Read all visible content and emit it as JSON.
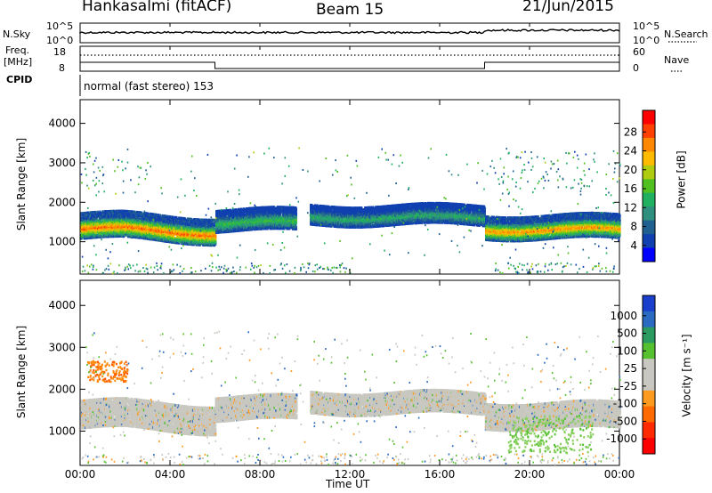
{
  "header": {
    "station": "Hankasalmi (fitACF)",
    "beam": "Beam 15",
    "date": "21/Jun/2015"
  },
  "strip": {
    "nsky_label": "N.Sky",
    "nsky_ticks": [
      "10^5",
      "10^0"
    ],
    "nsearch_label": "N.Search",
    "nsearch_ticks": [
      "10^5",
      "10^0"
    ],
    "freq_label_1": "Freq.",
    "freq_label_2": "[MHz]",
    "freq_ticks": [
      "18",
      "8"
    ],
    "nave_label": "Nave",
    "nave_ticks": [
      "60",
      "0"
    ],
    "cpid_label": "CPID",
    "cpid_text": "normal (fast stereo) 153"
  },
  "chart_data": [
    {
      "type": "heatmap",
      "name": "power-panel",
      "ylabel": "Slant Range [km]",
      "yticks": [
        "4000",
        "3000",
        "2000",
        "1000"
      ],
      "ylim": [
        180,
        4600
      ],
      "colorbar_label": "Power [dB]",
      "colorbar_ticks": [
        "28",
        "24",
        "20",
        "16",
        "12",
        "8",
        "4"
      ],
      "colorbar_colors": [
        "#ff0000",
        "#ff4000",
        "#ff8800",
        "#ffbb00",
        "#b0cc10",
        "#50c020",
        "#20b060",
        "#309080",
        "#206090",
        "#1040b0",
        "#0000ff"
      ],
      "bands": [
        {
          "t0": 0.0,
          "t1": 6.0,
          "r0": 1100,
          "r1": 1750,
          "peak": 26
        },
        {
          "t0": 6.0,
          "t1": 9.6,
          "r0": 1300,
          "r1": 1850,
          "peak": 14
        },
        {
          "t0": 10.2,
          "t1": 18.0,
          "r0": 1450,
          "r1": 1950,
          "peak": 12
        },
        {
          "t0": 18.0,
          "t1": 24.0,
          "r0": 1100,
          "r1": 1700,
          "peak": 24
        }
      ]
    },
    {
      "type": "heatmap",
      "name": "velocity-panel",
      "ylabel": "Slant Range [km]",
      "yticks": [
        "4000",
        "3000",
        "2000",
        "1000"
      ],
      "ylim": [
        180,
        4600
      ],
      "xlabel": "Time UT",
      "xticks": [
        "00:00",
        "04:00",
        "08:00",
        "12:00",
        "16:00",
        "20:00",
        "00:00"
      ],
      "colorbar_label": "Velocity [m s⁻¹]",
      "colorbar_ticks": [
        "1000",
        "500",
        "100",
        "25",
        "-25",
        "-100",
        "-500",
        "-1000"
      ],
      "colorbar_colors": [
        "#1a3fcc",
        "#2a6ac0",
        "#2a9a60",
        "#55c030",
        "#c8c8c0",
        "#c8c8c0",
        "#ff9a20",
        "#ff6a00",
        "#ff2a00",
        "#ff0000"
      ]
    }
  ]
}
